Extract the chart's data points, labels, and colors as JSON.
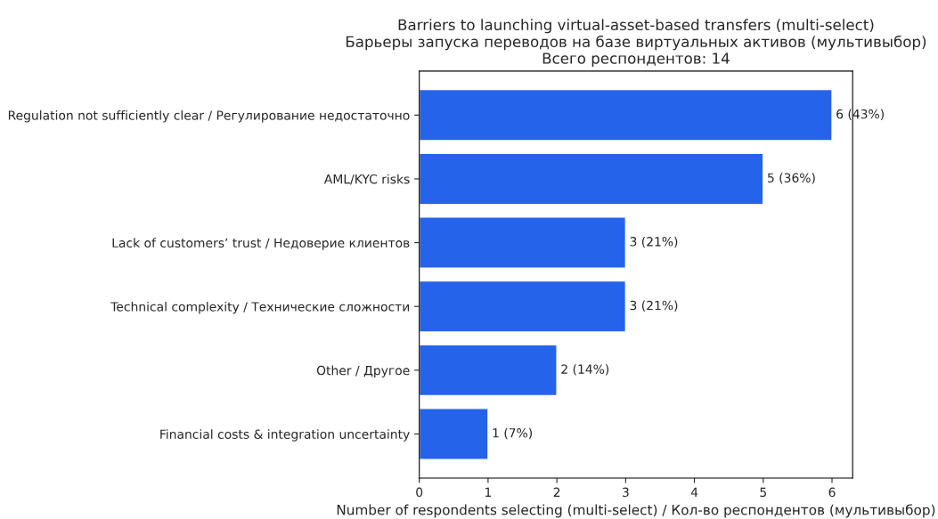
{
  "chart_data": {
    "type": "bar",
    "orientation": "horizontal",
    "title": "Barriers to launching virtual-asset-based transfers (multi-select)\nБарьеры запуска переводов на базе виртуальных активов (мультивыбор)\nВсего респондентов: 14",
    "xlabel": "Number of respondents selecting (multi-select) / Кол-во респондентов (мультивыбор)",
    "categories": [
      "Regulation not sufficiently clear / Регулирование недостаточно",
      "AML/KYC risks",
      "Lack of customers’ trust / Недоверие клиентов",
      "Technical complexity / Технические сложности",
      "Other / Другое",
      "Financial costs & integration uncertainty"
    ],
    "values": [
      6,
      5,
      3,
      3,
      2,
      1
    ],
    "value_labels": [
      "6 (43%)",
      "5 (36%)",
      "3 (21%)",
      "3 (21%)",
      "2 (14%)",
      "1 (7%)"
    ],
    "color": "#2563eb",
    "xlim": [
      0,
      6.3
    ],
    "xticks": [
      0,
      1,
      2,
      3,
      4,
      5,
      6
    ],
    "grid": false,
    "legend": false
  }
}
